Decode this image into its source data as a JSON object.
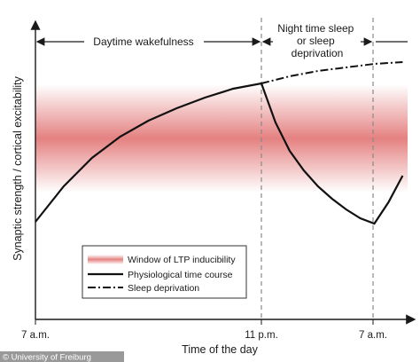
{
  "chart_data": {
    "type": "line",
    "xlabel": "Time of the day",
    "ylabel": "Synaptic strength / cortical excitability",
    "x_ticks": [
      "7 a.m.",
      "11 p.m.",
      "7 a.m."
    ],
    "x": [
      0,
      4,
      8,
      12,
      16,
      20,
      24
    ],
    "band": {
      "name": "Window of LTP inducibility",
      "y_range": [
        0.55,
        0.9
      ],
      "color": "#e06b6b"
    },
    "phases": [
      {
        "label": "Daytime wakefulness",
        "x_range": [
          0,
          16
        ]
      },
      {
        "label": "Night time sleep or sleep deprivation",
        "x_range": [
          16,
          24
        ]
      }
    ],
    "series": [
      {
        "name": "Physiological time course",
        "style": "solid",
        "x": [
          0,
          2,
          4,
          6,
          8,
          10,
          12,
          14,
          16,
          17,
          18,
          19,
          20,
          21,
          22,
          23,
          24,
          25,
          26
        ],
        "y": [
          0.1,
          0.3,
          0.46,
          0.58,
          0.67,
          0.74,
          0.8,
          0.85,
          0.88,
          0.66,
          0.5,
          0.39,
          0.3,
          0.23,
          0.17,
          0.12,
          0.09,
          0.21,
          0.36
        ]
      },
      {
        "name": "Sleep deprivation",
        "style": "dash-dot",
        "x": [
          16,
          18,
          20,
          22,
          24,
          26
        ],
        "y": [
          0.88,
          0.92,
          0.95,
          0.97,
          0.99,
          1.0
        ]
      }
    ],
    "xlim": [
      0,
      27
    ],
    "ylim": [
      -0.45,
      1.35
    ],
    "grid": false,
    "legend_position": "lower-left",
    "colors": {
      "band": "#e06b6b",
      "line": "#111111",
      "guide": "#888888"
    }
  },
  "credit": "© University of Freiburg"
}
